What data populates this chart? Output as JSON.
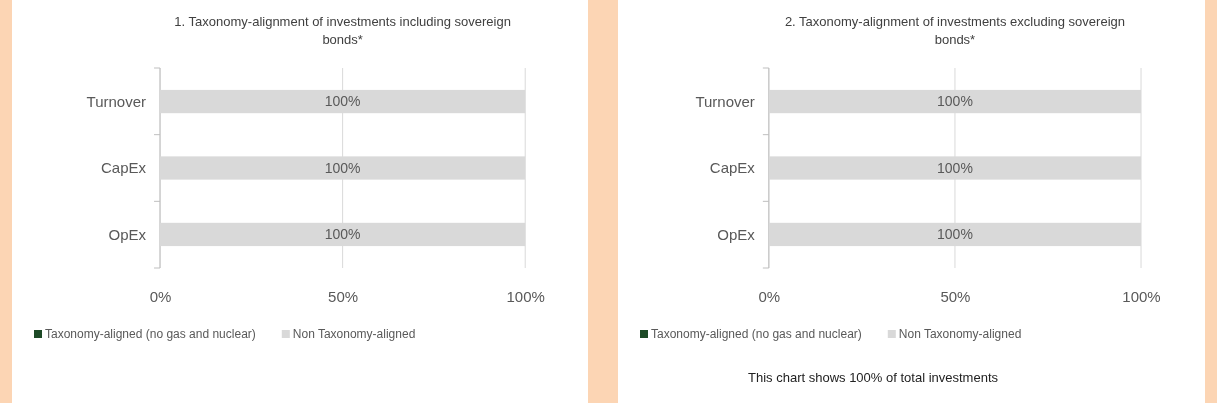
{
  "chart_data": [
    {
      "type": "bar",
      "orientation": "horizontal",
      "stacked": true,
      "title": "1. Taxonomy-alignment of investments including sovereign bonds*",
      "categories": [
        "Turnover",
        "CapEx",
        "OpEx"
      ],
      "series": [
        {
          "name": "Taxonomy-aligned (no gas and nuclear)",
          "color": "#1d4a26",
          "values": [
            0,
            0,
            0
          ]
        },
        {
          "name": "Non Taxonomy-aligned",
          "color": "#d9d9d9",
          "values": [
            100,
            100,
            100
          ],
          "value_labels": [
            "100%",
            "100%",
            "100%"
          ]
        }
      ],
      "xlim": [
        0,
        100
      ],
      "xticks": [
        {
          "value": 0,
          "label": "0%"
        },
        {
          "value": 50,
          "label": "50%"
        },
        {
          "value": 100,
          "label": "100%"
        }
      ],
      "grid": "x",
      "legend": "bottom"
    },
    {
      "type": "bar",
      "orientation": "horizontal",
      "stacked": true,
      "title": "2. Taxonomy-alignment of investments excluding sovereign bonds*",
      "categories": [
        "Turnover",
        "CapEx",
        "OpEx"
      ],
      "series": [
        {
          "name": "Taxonomy-aligned (no gas and nuclear)",
          "color": "#1d4a26",
          "values": [
            0,
            0,
            0
          ]
        },
        {
          "name": "Non Taxonomy-aligned",
          "color": "#d9d9d9",
          "values": [
            100,
            100,
            100
          ],
          "value_labels": [
            "100%",
            "100%",
            "100%"
          ]
        }
      ],
      "xlim": [
        0,
        100
      ],
      "xticks": [
        {
          "value": 0,
          "label": "0%"
        },
        {
          "value": 50,
          "label": "50%"
        },
        {
          "value": 100,
          "label": "100%"
        }
      ],
      "grid": "x",
      "legend": "bottom",
      "annotations": [
        "This chart shows 100% of total investments"
      ]
    }
  ]
}
